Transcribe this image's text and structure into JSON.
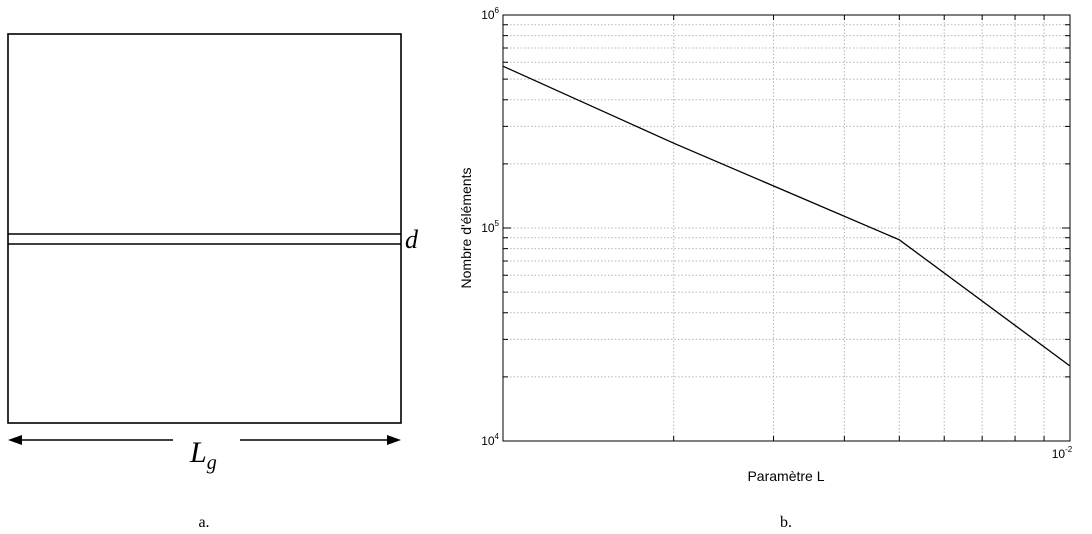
{
  "panel_a": {
    "caption": "a.",
    "gap_label": "d",
    "width_label_main": "L",
    "width_label_sub": "g"
  },
  "panel_b": {
    "caption": "b."
  },
  "chart_data": {
    "type": "line",
    "title": "",
    "xlabel": "Paramètre L",
    "ylabel": "Nombre d'éléments",
    "x_scale": "log",
    "y_scale": "log",
    "xlim": [
      0.001,
      0.01
    ],
    "ylim": [
      10000,
      1000000
    ],
    "grid": true,
    "legend": "none",
    "x_tick_labels": [
      {
        "base": "10",
        "exp": "-2",
        "value": 0.01
      }
    ],
    "y_tick_labels": [
      {
        "base": "10",
        "exp": "4",
        "value": 10000
      },
      {
        "base": "10",
        "exp": "5",
        "value": 100000
      },
      {
        "base": "10",
        "exp": "6",
        "value": 1000000
      }
    ],
    "series": [
      {
        "x": [
          0.001,
          0.002,
          0.005,
          0.01
        ],
        "y": [
          575000,
          250000,
          88000,
          22500
        ]
      }
    ],
    "line_color": "#000000"
  }
}
